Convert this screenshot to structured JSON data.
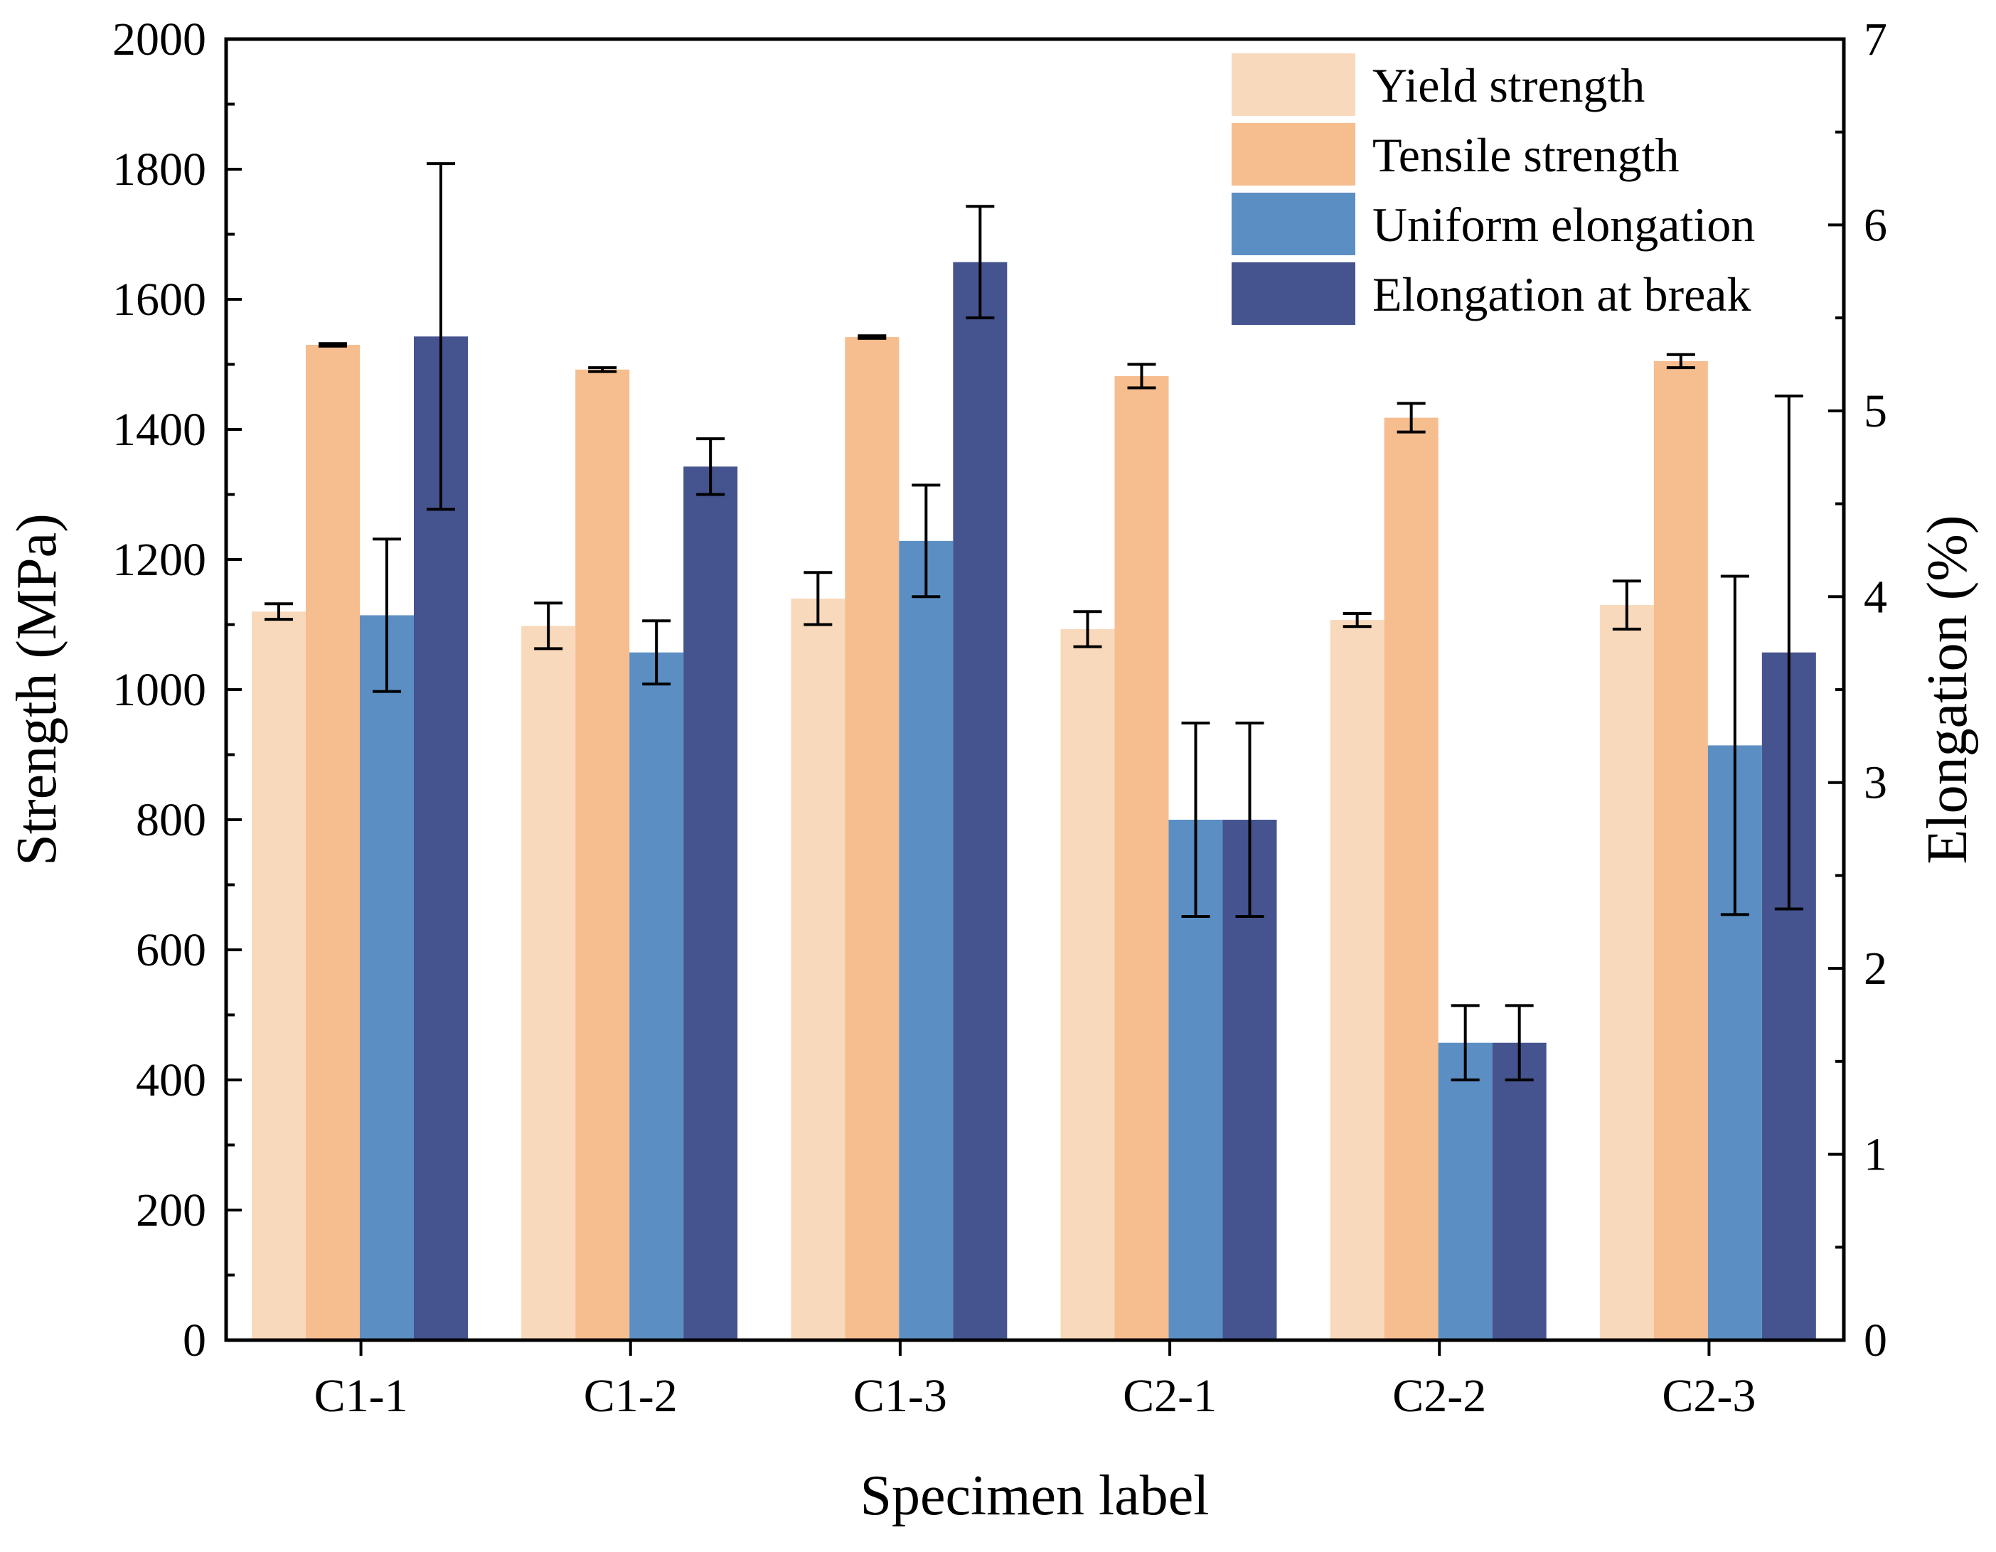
{
  "chart_data": {
    "type": "bar",
    "title": "",
    "xlabel": "Specimen label",
    "ylabel": "Strength (MPa)",
    "y2label": "Elongation (%)",
    "ylim": [
      0,
      2000
    ],
    "y2lim": [
      0,
      7
    ],
    "yticks": [
      "0",
      "200",
      "400",
      "600",
      "800",
      "1000",
      "1200",
      "1400",
      "1600",
      "1800",
      "2000"
    ],
    "y2ticks": [
      "0",
      "1",
      "2",
      "3",
      "4",
      "5",
      "6",
      "7"
    ],
    "categories": [
      "C1-1",
      "C1-2",
      "C1-3",
      "C2-1",
      "C2-2",
      "C2-3"
    ],
    "legend_position": "top-right",
    "series": [
      {
        "name": "Yield strength",
        "axis": "left",
        "color": "#f9d9bb",
        "values": [
          1120,
          1098,
          1140,
          1093,
          1107,
          1130
        ],
        "errors": [
          12,
          35,
          40,
          27,
          10,
          37
        ]
      },
      {
        "name": "Tensile strength",
        "axis": "left",
        "color": "#f6bd8f",
        "values": [
          1530,
          1492,
          1542,
          1482,
          1418,
          1505
        ],
        "errors": [
          2,
          3,
          2,
          18,
          22,
          10
        ]
      },
      {
        "name": "Uniform elongation",
        "axis": "right",
        "color": "#5b8fc4",
        "values": [
          3.9,
          3.7,
          4.3,
          2.8,
          1.6,
          3.2
        ],
        "errors": [
          0.41,
          0.17,
          0.3,
          0.52,
          0.2,
          0.91
        ]
      },
      {
        "name": "Elongation at break",
        "axis": "right",
        "color": "#45548f",
        "values": [
          5.4,
          4.7,
          5.8,
          2.8,
          1.6,
          3.7
        ],
        "errors": [
          0.93,
          0.15,
          0.3,
          0.52,
          0.2,
          1.38
        ]
      }
    ]
  }
}
